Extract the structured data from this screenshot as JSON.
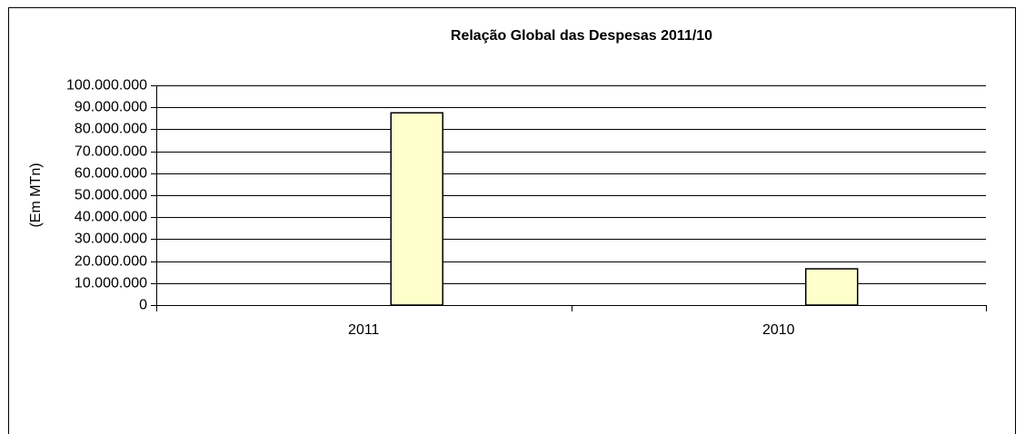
{
  "chart_data": {
    "type": "bar",
    "title": "Relação Global das Despesas 2011/10",
    "y_label": "(Em MTn)",
    "categories": [
      "2011",
      "2010"
    ],
    "values": [
      87500000,
      16500000
    ],
    "color": "#ffffcc",
    "ylim": [
      0,
      100000000
    ],
    "yticks": [
      0,
      {
        "value": 10000000,
        "label": "10.000.000"
      },
      {
        "value": 20000000,
        "label": "20.000.000"
      },
      {
        "value": 30000000,
        "label": "30.000.000"
      },
      {
        "value": 40000000,
        "label": "40.000.000"
      },
      {
        "value": 50000000,
        "label": "50.000.000"
      },
      {
        "value": 60000000,
        "label": "60.000.000"
      },
      {
        "value": 70000000,
        "label": "70.000.000"
      },
      {
        "value": 80000000,
        "label": "80.000.000"
      },
      {
        "value": 90000000,
        "label": "90.000.000"
      },
      {
        "value": 100000000,
        "label": "100.000.000"
      }
    ],
    "grid": true
  }
}
